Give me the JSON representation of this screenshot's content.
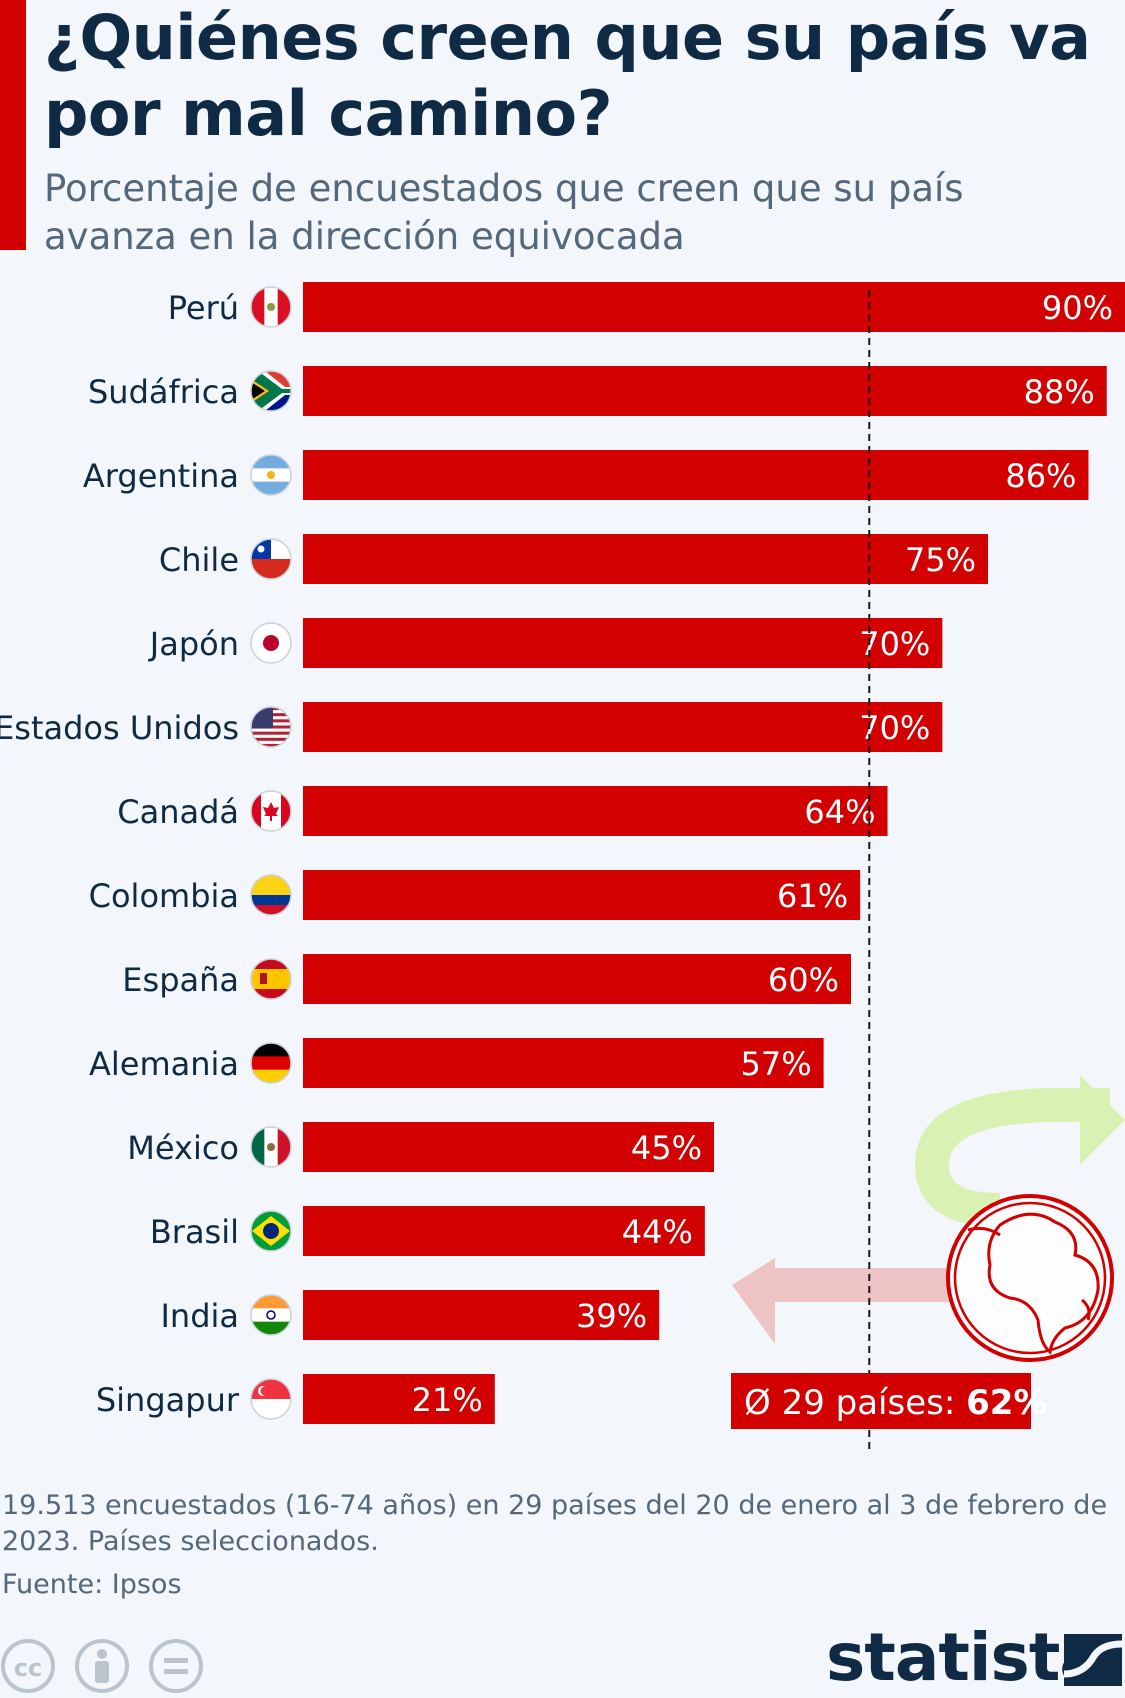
{
  "header": {
    "title": "¿Quiénes creen que su país va por mal camino?",
    "subtitle": "Porcentaje de encuestados que creen que su país avanza en la dirección equivocada"
  },
  "chart_data": {
    "type": "bar",
    "orientation": "horizontal",
    "categories": [
      "Perú",
      "Sudáfrica",
      "Argentina",
      "Chile",
      "Japón",
      "Estados Unidos",
      "Canadá",
      "Colombia",
      "España",
      "Alemania",
      "México",
      "Brasil",
      "India",
      "Singapur"
    ],
    "values": [
      90,
      88,
      86,
      75,
      70,
      70,
      64,
      61,
      60,
      57,
      45,
      44,
      39,
      21
    ],
    "value_labels": [
      "90%",
      "88%",
      "86%",
      "75%",
      "70%",
      "70%",
      "64%",
      "61%",
      "60%",
      "57%",
      "45%",
      "44%",
      "39%",
      "21%"
    ],
    "flag_icons": [
      "peru-flag-icon",
      "south-africa-flag-icon",
      "argentina-flag-icon",
      "chile-flag-icon",
      "japan-flag-icon",
      "usa-flag-icon",
      "canada-flag-icon",
      "colombia-flag-icon",
      "spain-flag-icon",
      "germany-flag-icon",
      "mexico-flag-icon",
      "brazil-flag-icon",
      "india-flag-icon",
      "singapore-flag-icon"
    ],
    "xlim": [
      0,
      90
    ],
    "reference_line": {
      "value": 62,
      "label_prefix": "Ø 29 países: ",
      "label_value": "62%"
    },
    "bar_color": "#d20000",
    "grid": false
  },
  "footer": {
    "note": "19.513 encuestados (16-74 años) en 29 países del 20 de enero al 3 de febrero de 2023. Países seleccionados.",
    "source": "Fuente: Ipsos",
    "license_icons": [
      "cc-icon",
      "by-icon",
      "nd-icon"
    ],
    "logo": "statista"
  }
}
